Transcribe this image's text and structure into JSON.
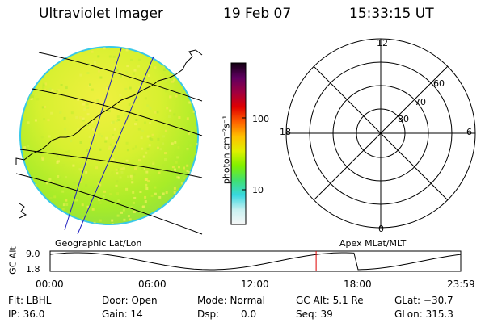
{
  "header": {
    "instrument": "Ultraviolet Imager",
    "date": "19 Feb 07",
    "time": "15:33:15 UT"
  },
  "colorbar": {
    "unit": "photon cm⁻²s⁻¹",
    "tick_100": "100",
    "tick_10": "10",
    "scale": "log",
    "stops": [
      "#f7f7f7",
      "#c8f0f0",
      "#38d8e0",
      "#40e070",
      "#80f000",
      "#e0f000",
      "#ffc000",
      "#ff6000",
      "#e00000",
      "#a00040",
      "#600060",
      "#100010"
    ]
  },
  "image_panel": {
    "label": "Geographic Lat/Lon"
  },
  "polar_plot": {
    "label": "Apex MLat/MLT",
    "mlt_12": "12",
    "mlt_18": "18",
    "mlt_6": "6",
    "mlt_0": "0",
    "lat_60": "60",
    "lat_70": "70",
    "lat_80": "80"
  },
  "altitude_plot": {
    "ylabel": "GC Alt",
    "y_max": "9.0",
    "y_min": "1.8",
    "x_ticks": [
      "00:00",
      "06:00",
      "12:00",
      "18:00",
      "23:59"
    ],
    "current_time_marker": "15:33",
    "marker_color": "#e00000"
  },
  "status": {
    "filter": "Flt: LBHL",
    "ip": "IP: 36.0",
    "door": "Door: Open",
    "gain": "Gain: 14",
    "mode": "Mode: Normal",
    "dsp_label": "Dsp:",
    "dsp_value": "0.0",
    "gc_alt": "GC Alt: 5.1 Re",
    "seq": "Seq: 39",
    "glat": "GLat: −30.7",
    "glon": "GLon: 315.3"
  }
}
